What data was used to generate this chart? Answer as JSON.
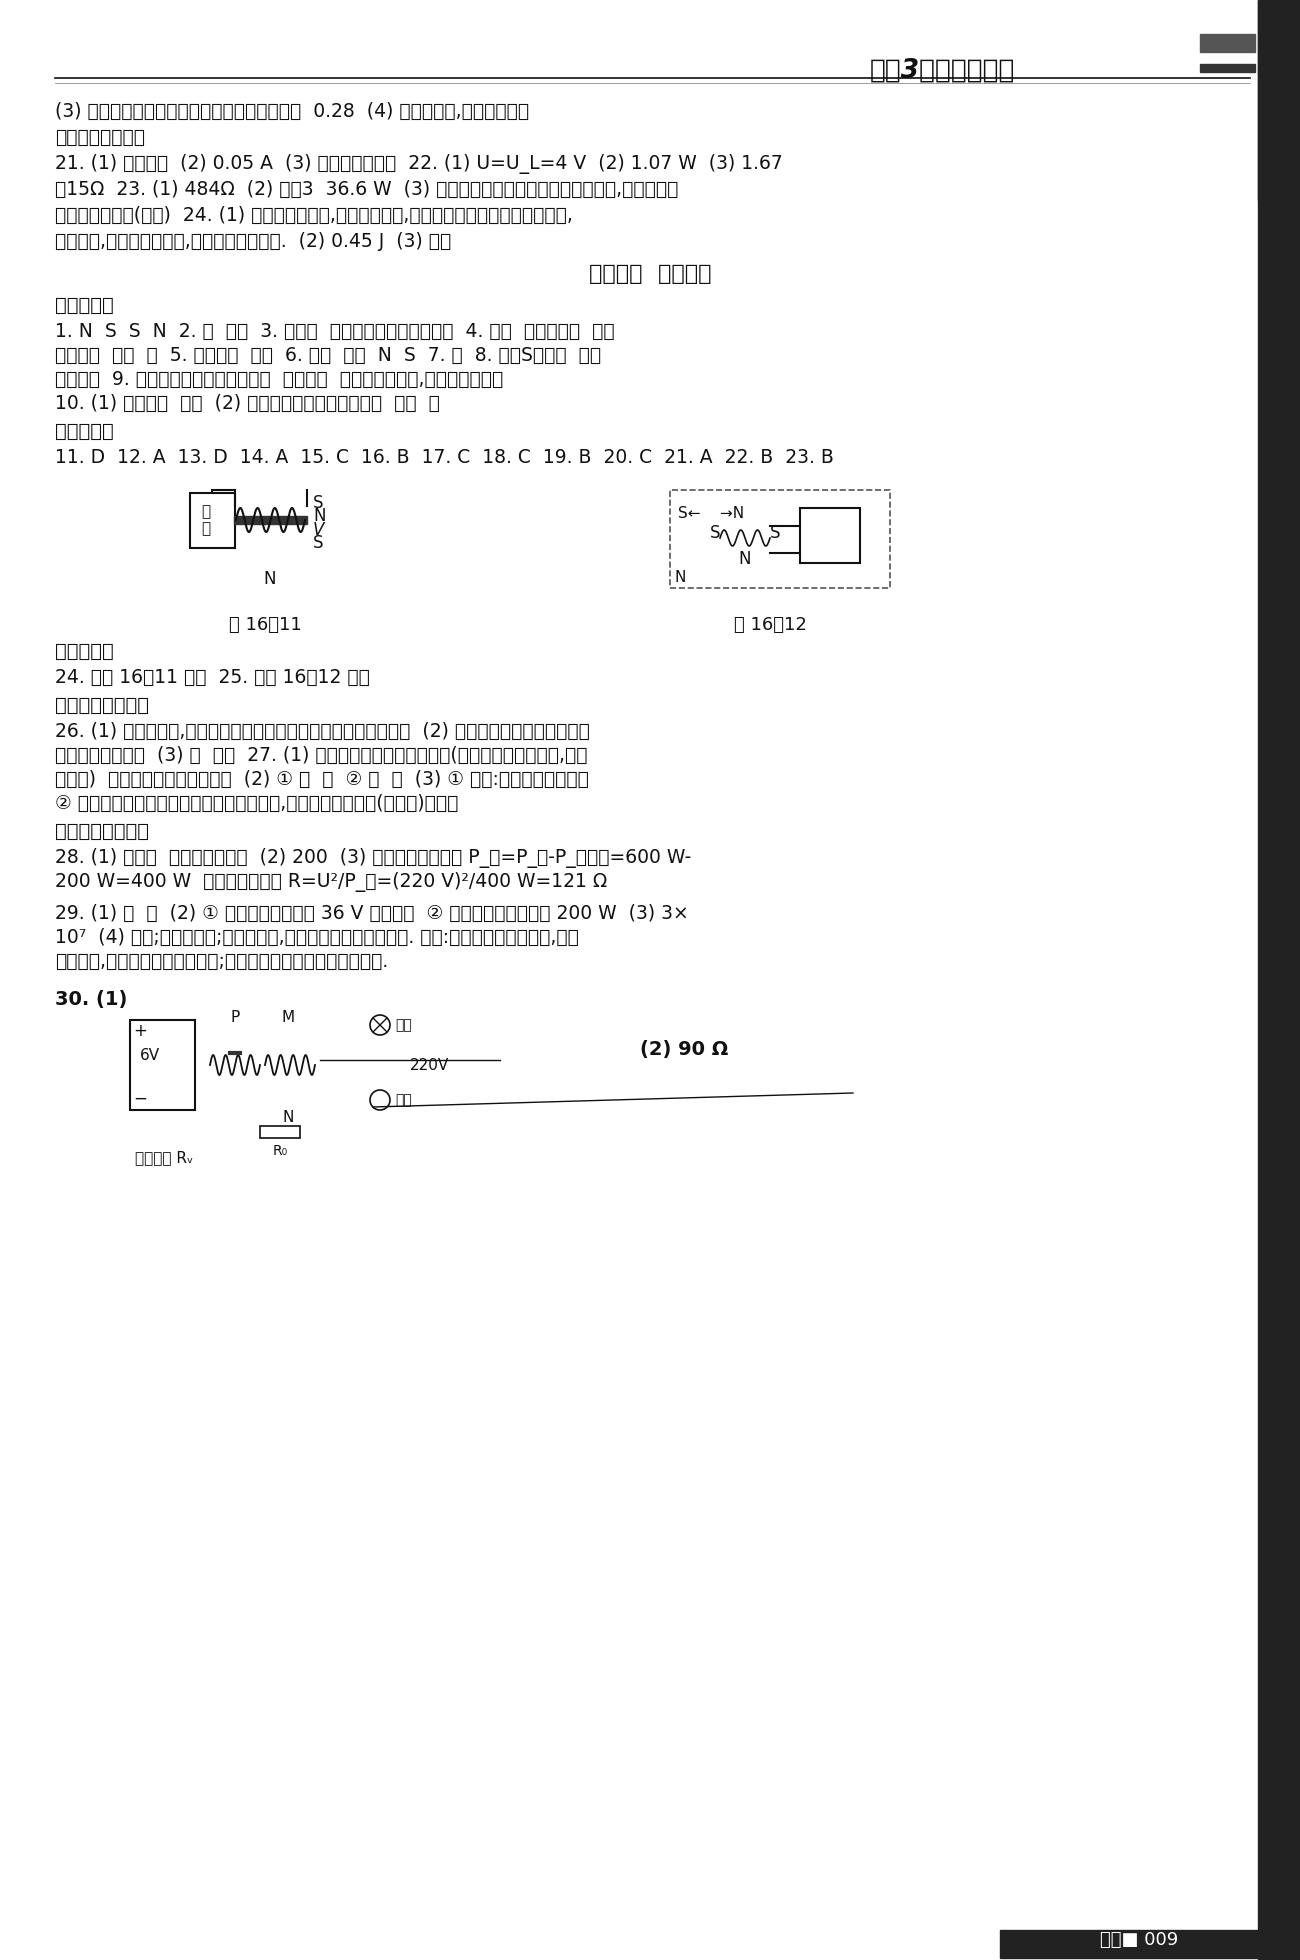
{
  "bg_color": "#ffffff",
  "header_title": "《金3练》参考答案",
  "header_line_color": "#000000",
  "sidebar_color": "#333333",
  "page_number": "009",
  "content": [
    "(3) 测出额定功率和电压偏高以及偏低时的功率  0.28  (4) 电压变大时,灯的电阻变大",
    "四、计算与应用题",
    "21. (1) 人走灯熄  (2) 0.05 A  (3) 节能灯更有优势  22. (1) U=U_L=4 V  (2) 1.07 W  (3) 1.67",
    "～15Ω  23. (1) 484Ω  (2) 触点3  36.6 W  (3) 该同学所设计的电路调光亮度不连续,可用一滑动",
    "变阻器与灯串联(图略)  24. (1) 细铜丝的电阻大,根据焦耳定律,在电流和通电时间相同的情况下,",
    "电阻越大,产生的热量越多,所以细铜丝先熔断.  (2) 0.45 J  (3) 较粗"
  ],
  "chapter_title": "第十六章  过关检测",
  "section1_title": "一、填空题",
  "fill_lines": [
    "1. N  S  S  N  2. 南  沈括  3. 奥斯特  通电直导线周围存在磁场  4. 磁场  切割磁感线  感应",
    "电磁感应  机械  电  5. 通电导线  磁场  6. 磁极  磁场  N  S  7. 无  8. 开关S未闭合  闭合",
    "电磁感应  9. 通电导体在磁场中受力转动  电磁感应  一个是电能生磁,一个是磁能生电",
    "10. (1) 电磁感应  发电  (2) 通电导体在磁场中受力转动  电动  电"
  ],
  "section2_title": "二、选择题",
  "select_line": "11. D  12. A  13. D  14. A  15. C  16. B  17. C  18. C  19. B  20. C  21. A  22. B  23. B",
  "fig_caption1": "图 16－11",
  "fig_caption2": "图 16－12",
  "section3_title": "三、作图题",
  "draw_lines": [
    "24. 如图 16－11 所示  25. 如图 16－12 所示"
  ],
  "section4_title": "四、实验与探究题",
  "explore_lines": [
    "26. (1) 可能是断路,无电流或导线下方磁场方向与地磁场方向一致  (2) 因为只有通过磁场作用才能",
    "使小磁针发生摆动  (3) 电  机械  27. (1) 调节滑动变阻器的滑片位置(改变连入电路的电阻,改变",
    "电阻等)  电磁铁吸引大头针的多少  (2) ① 大  强  ② 多  强  (3) ① 提示:针对主题提出猜想",
    "② 将大小不同的铁心分别插入通电螺线管中,观察铁心吸引铁钉(大头针)的多少"
  ],
  "section5_title": "五、计算与应用题",
  "calc_lines": [
    "28. (1) 电动机  电动机和电热丝  (2) 200  (3) 电热丝的功率应为 P_丝=P_总-P_电动机=600 W-",
    "200 W=400 W  电热丝的电阻为 R=U²/P_丝=(220 V)²/400 W=121 Ω"
  ],
  "calc_lines2": [
    "29. (1) 风  电  (2) ① 应选用额定电压为 36 V 的用电器  ② 用电器总功率不超过 200 W  (3) 3×",
    "10⁷  (4) 困难;风力不稳定;前期投资大,导致风力发电成本较高等. 前景:随着技术不断的成熟,成本",
    "下降较快,有望低于火力发电成本;风力发电对环境几乎没有污染等."
  ],
  "prob30_label": "30. (1)",
  "prob30_part2": "(2) 90 Ω",
  "label_pressure": "压敏电阻 Rᵥ"
}
